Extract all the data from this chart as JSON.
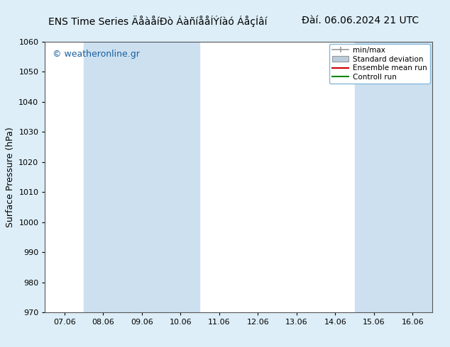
{
  "title_left": "ENS Time Series ÄåàåíÐò ÁàñíååÍÝíàó ÁåçÍâí",
  "title_right": "Đàí. 06.06.2024 21 UTC",
  "ylabel": "Surface Pressure (hPa)",
  "ylim": [
    970,
    1060
  ],
  "yticks": [
    970,
    980,
    990,
    1000,
    1010,
    1020,
    1030,
    1040,
    1050,
    1060
  ],
  "x_labels": [
    "07.06",
    "08.06",
    "09.06",
    "10.06",
    "11.06",
    "12.06",
    "13.06",
    "14.06",
    "15.06",
    "16.06"
  ],
  "x_values": [
    0,
    1,
    2,
    3,
    4,
    5,
    6,
    7,
    8,
    9
  ],
  "shaded_columns": [
    1,
    2,
    3,
    8,
    9
  ],
  "watermark": "© weatheronline.gr",
  "legend_labels": [
    "min/max",
    "Standard deviation",
    "Ensemble mean run",
    "Controll run"
  ],
  "bg_color": "#ddeef8",
  "plot_bg_color": "#ffffff",
  "shade_color": "#cce0f0",
  "border_color": "#88b8d8",
  "title_fontsize": 10,
  "axis_label_fontsize": 9,
  "tick_fontsize": 8,
  "watermark_color": "#1a5f9e",
  "watermark_fontsize": 9
}
